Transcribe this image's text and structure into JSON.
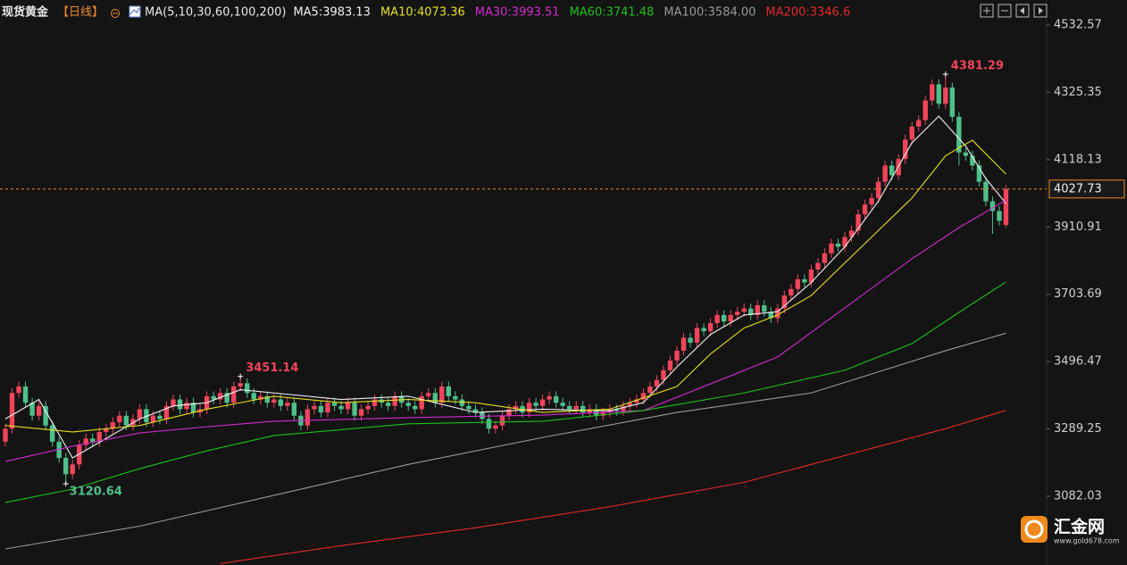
{
  "chart_data": {
    "type": "candlestick",
    "title": "现货黄金",
    "period": "【日线】",
    "indicator": "MA(5,10,30,60,100,200)",
    "up_color": "#f0455a",
    "down_color": "#4fc08b",
    "ylim": [
      2870.5,
      4609.5
    ],
    "yticks": [
      4532.57,
      4325.35,
      4118.13,
      3910.91,
      3703.69,
      3496.47,
      3289.25,
      3082.03
    ],
    "open": [
      3250,
      3290,
      3400,
      3420,
      3370,
      3330,
      3360,
      3300,
      3250,
      3200,
      3150,
      3180,
      3240,
      3260,
      3250,
      3280,
      3290,
      3310,
      3330,
      3300,
      3320,
      3350,
      3310,
      3330,
      3320,
      3360,
      3380,
      3350,
      3370,
      3340,
      3350,
      3390,
      3380,
      3400,
      3370,
      3420,
      3430,
      3400,
      3380,
      3390,
      3370,
      3380,
      3360,
      3370,
      3330,
      3300,
      3350,
      3360,
      3340,
      3370,
      3360,
      3350,
      3370,
      3330,
      3350,
      3360,
      3380,
      3370,
      3360,
      3390,
      3370,
      3360,
      3350,
      3390,
      3400,
      3370,
      3420,
      3390,
      3380,
      3360,
      3350,
      3340,
      3320,
      3290,
      3300,
      3330,
      3350,
      3360,
      3340,
      3370,
      3360,
      3380,
      3390,
      3370,
      3360,
      3350,
      3360,
      3340,
      3350,
      3330,
      3340,
      3350,
      3345,
      3360,
      3370,
      3380,
      3400,
      3420,
      3440,
      3470,
      3500,
      3530,
      3570,
      3555,
      3600,
      3590,
      3615,
      3640,
      3620,
      3640,
      3650,
      3660,
      3640,
      3670,
      3650,
      3630,
      3660,
      3700,
      3720,
      3750,
      3740,
      3780,
      3800,
      3830,
      3860,
      3850,
      3880,
      3900,
      3950,
      3980,
      4000,
      4050,
      4100,
      4070,
      4120,
      4180,
      4220,
      4240,
      4300,
      4350,
      4290,
      4340,
      4250,
      4140,
      4130,
      4100,
      4050,
      3990,
      3960,
      3917
    ],
    "high": [
      3305,
      3415,
      3435,
      3435,
      3385,
      3375,
      3375,
      3315,
      3265,
      3215,
      3195,
      3255,
      3275,
      3275,
      3295,
      3305,
      3325,
      3345,
      3345,
      3335,
      3365,
      3365,
      3345,
      3345,
      3375,
      3395,
      3395,
      3385,
      3385,
      3365,
      3405,
      3405,
      3415,
      3415,
      3435,
      3451.14,
      3445,
      3415,
      3405,
      3405,
      3395,
      3395,
      3385,
      3385,
      3345,
      3365,
      3375,
      3375,
      3385,
      3385,
      3375,
      3385,
      3385,
      3365,
      3375,
      3395,
      3395,
      3385,
      3405,
      3405,
      3385,
      3375,
      3405,
      3415,
      3415,
      3435,
      3435,
      3405,
      3395,
      3375,
      3365,
      3355,
      3335,
      3315,
      3345,
      3365,
      3375,
      3375,
      3385,
      3385,
      3395,
      3405,
      3405,
      3385,
      3375,
      3375,
      3375,
      3365,
      3365,
      3355,
      3365,
      3365,
      3375,
      3385,
      3395,
      3415,
      3435,
      3455,
      3485,
      3515,
      3545,
      3585,
      3585,
      3615,
      3615,
      3630,
      3655,
      3655,
      3655,
      3665,
      3675,
      3675,
      3685,
      3685,
      3665,
      3675,
      3715,
      3735,
      3765,
      3765,
      3795,
      3815,
      3845,
      3875,
      3875,
      3895,
      3915,
      3965,
      3995,
      4015,
      4065,
      4115,
      4115,
      4135,
      4195,
      4235,
      4255,
      4315,
      4365,
      4365,
      4381.29,
      4355,
      4265,
      4155,
      4145,
      4115,
      4065,
      4005,
      3975,
      4040
    ],
    "low": [
      3235,
      3275,
      3385,
      3355,
      3315,
      3315,
      3285,
      3235,
      3185,
      3120.64,
      3135,
      3165,
      3225,
      3235,
      3235,
      3265,
      3275,
      3295,
      3285,
      3285,
      3305,
      3295,
      3295,
      3305,
      3305,
      3345,
      3335,
      3335,
      3325,
      3325,
      3335,
      3365,
      3365,
      3355,
      3355,
      3405,
      3385,
      3365,
      3365,
      3355,
      3355,
      3345,
      3345,
      3315,
      3285,
      3285,
      3335,
      3325,
      3325,
      3345,
      3335,
      3335,
      3315,
      3315,
      3335,
      3345,
      3355,
      3345,
      3345,
      3355,
      3345,
      3335,
      3335,
      3375,
      3355,
      3355,
      3375,
      3365,
      3345,
      3335,
      3325,
      3305,
      3275,
      3275,
      3285,
      3315,
      3335,
      3325,
      3325,
      3345,
      3345,
      3365,
      3355,
      3345,
      3335,
      3335,
      3325,
      3325,
      3315,
      3315,
      3325,
      3330,
      3330,
      3345,
      3355,
      3365,
      3385,
      3405,
      3425,
      3455,
      3485,
      3515,
      3540,
      3540,
      3575,
      3575,
      3600,
      3605,
      3605,
      3625,
      3635,
      3625,
      3625,
      3635,
      3615,
      3615,
      3645,
      3685,
      3705,
      3725,
      3725,
      3765,
      3785,
      3815,
      3835,
      3835,
      3865,
      3885,
      3935,
      3965,
      3985,
      4035,
      4055,
      4055,
      4105,
      4165,
      4205,
      4225,
      4285,
      4275,
      4275,
      4235,
      4100,
      4115,
      4085,
      4035,
      3975,
      3890,
      3915,
      3910
    ],
    "close": [
      3290,
      3400,
      3420,
      3370,
      3330,
      3360,
      3300,
      3250,
      3200,
      3150,
      3180,
      3240,
      3260,
      3250,
      3280,
      3290,
      3310,
      3330,
      3300,
      3320,
      3350,
      3310,
      3330,
      3320,
      3360,
      3380,
      3350,
      3370,
      3340,
      3350,
      3390,
      3380,
      3400,
      3370,
      3420,
      3430,
      3400,
      3380,
      3390,
      3370,
      3380,
      3360,
      3370,
      3330,
      3300,
      3350,
      3360,
      3340,
      3370,
      3360,
      3350,
      3370,
      3330,
      3350,
      3360,
      3380,
      3370,
      3360,
      3390,
      3370,
      3360,
      3350,
      3390,
      3400,
      3370,
      3420,
      3390,
      3380,
      3360,
      3350,
      3340,
      3320,
      3290,
      3300,
      3330,
      3350,
      3360,
      3340,
      3370,
      3360,
      3380,
      3390,
      3370,
      3360,
      3350,
      3360,
      3340,
      3350,
      3330,
      3340,
      3350,
      3345,
      3360,
      3370,
      3380,
      3400,
      3420,
      3440,
      3470,
      3500,
      3530,
      3570,
      3555,
      3600,
      3590,
      3615,
      3640,
      3620,
      3640,
      3650,
      3660,
      3640,
      3670,
      3650,
      3630,
      3660,
      3700,
      3720,
      3750,
      3740,
      3780,
      3800,
      3830,
      3860,
      3850,
      3880,
      3900,
      3950,
      3980,
      4000,
      4050,
      4100,
      4070,
      4120,
      4180,
      4220,
      4240,
      4300,
      4350,
      4290,
      4340,
      4250,
      4140,
      4130,
      4100,
      4050,
      3990,
      3960,
      3930,
      4027.73
    ],
    "series": [
      {
        "name": "MA5:3983.13",
        "color": "#f2f2f2",
        "x": [
          0,
          5,
          10,
          15,
          20,
          25,
          30,
          35,
          40,
          50,
          60,
          70,
          80,
          90,
          95,
          100,
          105,
          110,
          115,
          120,
          125,
          130,
          135,
          139,
          143,
          146,
          149
        ],
        "values": [
          3320,
          3380,
          3200,
          3260,
          3320,
          3360,
          3370,
          3410,
          3400,
          3380,
          3390,
          3340,
          3350,
          3345,
          3370,
          3480,
          3580,
          3640,
          3650,
          3740,
          3850,
          3990,
          4170,
          4252,
          4160,
          4060,
          3983.13
        ]
      },
      {
        "name": "MA10:4073.36",
        "color": "#e6e01e",
        "x": [
          0,
          10,
          20,
          30,
          40,
          50,
          60,
          70,
          80,
          90,
          100,
          105,
          110,
          115,
          120,
          125,
          130,
          135,
          140,
          144,
          149
        ],
        "values": [
          3300,
          3280,
          3300,
          3350,
          3390,
          3370,
          3380,
          3370,
          3340,
          3350,
          3420,
          3520,
          3600,
          3640,
          3700,
          3800,
          3900,
          4000,
          4130,
          4178,
          4073.36
        ]
      },
      {
        "name": "MA30:3993.51",
        "color": "#d22bd2",
        "x": [
          0,
          10,
          20,
          30,
          40,
          60,
          80,
          95,
          105,
          115,
          125,
          135,
          142,
          149
        ],
        "values": [
          3189,
          3236,
          3277,
          3296,
          3313,
          3324,
          3332,
          3346,
          3428,
          3511,
          3662,
          3813,
          3909,
          3993.51
        ]
      },
      {
        "name": "MA60:3741.48",
        "color": "#1fc01f",
        "x": [
          0,
          10,
          20,
          30,
          40,
          60,
          80,
          95,
          110,
          125,
          135,
          142,
          149
        ],
        "values": [
          3063,
          3104,
          3167,
          3222,
          3269,
          3305,
          3313,
          3346,
          3400,
          3470,
          3552,
          3648,
          3741.48
        ]
      },
      {
        "name": "MA100:3584.00",
        "color": "#9a9a9a",
        "x": [
          0,
          20,
          40,
          60,
          80,
          100,
          120,
          132,
          140,
          149
        ],
        "values": [
          2920,
          2990,
          3085,
          3180,
          3263,
          3340,
          3400,
          3478,
          3530,
          3584
        ]
      },
      {
        "name": "MA200:3346.6",
        "color": "#e52a2a",
        "x": [
          32,
          50,
          70,
          90,
          110,
          130,
          140,
          149
        ],
        "values": [
          2875,
          2930,
          2985,
          3050,
          3125,
          3235,
          3290,
          3346.6
        ]
      }
    ],
    "annotations": [
      {
        "x": 140,
        "value": 4381.29
      },
      {
        "x": 35,
        "value": 3451.14
      },
      {
        "x": 9,
        "value": 3120.64
      }
    ]
  },
  "watermark": {
    "name": "汇金网",
    "url": "www.gold678.com"
  }
}
